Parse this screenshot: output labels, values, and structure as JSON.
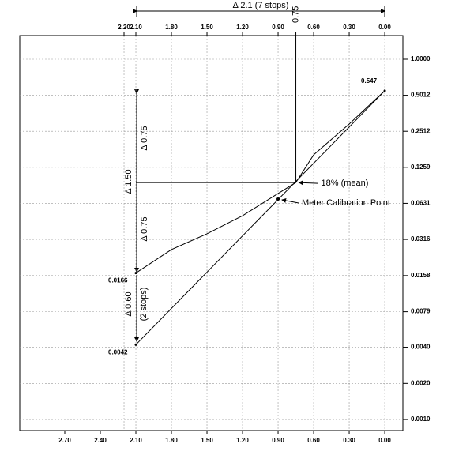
{
  "chart_data": {
    "type": "line",
    "log_y": true,
    "xlim": [
      3.08,
      -0.153
    ],
    "ylim": [
      0.00081,
      1.575
    ],
    "xticks": [
      {
        "value": 2.7,
        "label": "2.70"
      },
      {
        "value": 2.4,
        "label": "2.40"
      },
      {
        "value": 2.1,
        "label": "2.10"
      },
      {
        "value": 1.8,
        "label": "1.80"
      },
      {
        "value": 1.5,
        "label": "1.50"
      },
      {
        "value": 1.2,
        "label": "1.20"
      },
      {
        "value": 0.9,
        "label": "0.90"
      },
      {
        "value": 0.6,
        "label": "0.60"
      },
      {
        "value": 0.3,
        "label": "0.30"
      },
      {
        "value": 0,
        "label": "0.00"
      }
    ],
    "top_xticks": [
      {
        "value": 2.2,
        "label": "2.20"
      },
      {
        "value": 2.1,
        "label": "2.10"
      },
      {
        "value": 1.8,
        "label": "1.80"
      },
      {
        "value": 1.5,
        "label": "1.50"
      },
      {
        "value": 1.2,
        "label": "1.20"
      },
      {
        "value": 0.9,
        "label": "0.90"
      },
      {
        "value": 0.6,
        "label": "0.60"
      },
      {
        "value": 0.3,
        "label": "0.30"
      },
      {
        "value": 0,
        "label": "0.00"
      }
    ],
    "y2ticks": [
      {
        "value": 1,
        "label": "1.0000"
      },
      {
        "value": 0.5012,
        "label": "0.5012"
      },
      {
        "value": 0.2512,
        "label": "0.2512"
      },
      {
        "value": 0.1259,
        "label": "0.1259"
      },
      {
        "value": 0.0631,
        "label": "0.0631"
      },
      {
        "value": 0.0316,
        "label": "0.0316"
      },
      {
        "value": 0.0158,
        "label": "0.0158"
      },
      {
        "value": 0.0079,
        "label": "0.0079"
      },
      {
        "value": 0.004,
        "label": "0.0040"
      },
      {
        "value": 0.002,
        "label": "0.0020"
      },
      {
        "value": 0.001,
        "label": "0.0010"
      }
    ],
    "series": [
      {
        "color": "#000000",
        "x": [
          0,
          2.1
        ],
        "values": [
          0.547,
          0.0042
        ]
      },
      {
        "color": "#000000",
        "x": [
          0,
          0.3,
          0.6,
          0.75,
          0.9,
          1.2,
          1.5,
          1.8,
          2.1
        ],
        "values": [
          0.547,
          0.289,
          0.16,
          0.094,
          0.0762,
          0.0498,
          0.0352,
          0.026,
          0.0166
        ]
      }
    ],
    "point_labels": [
      {
        "x": 0,
        "value": 0.547,
        "label": "0.547"
      },
      {
        "x": 2.1,
        "value": 0.0166,
        "label": "0.0166"
      },
      {
        "x": 2.1,
        "value": 0.0042,
        "label": "0.0042"
      }
    ],
    "mean_point": {
      "x": 0.75,
      "value": 0.094,
      "label": "18% (mean)",
      "x_label": "0.75"
    },
    "meter_point": {
      "x": 0.9,
      "value": 0.0685,
      "label": "Meter Calibration Point"
    },
    "annotations": {
      "range_total": "Δ 2.1 (7 stops)",
      "range_curve": "Δ 1.50",
      "upper_half": "Δ 0.75",
      "lower_half": "Δ 0.75",
      "range_straight": "Δ 0.60",
      "range_straight_stops": "(2 stops)"
    }
  }
}
